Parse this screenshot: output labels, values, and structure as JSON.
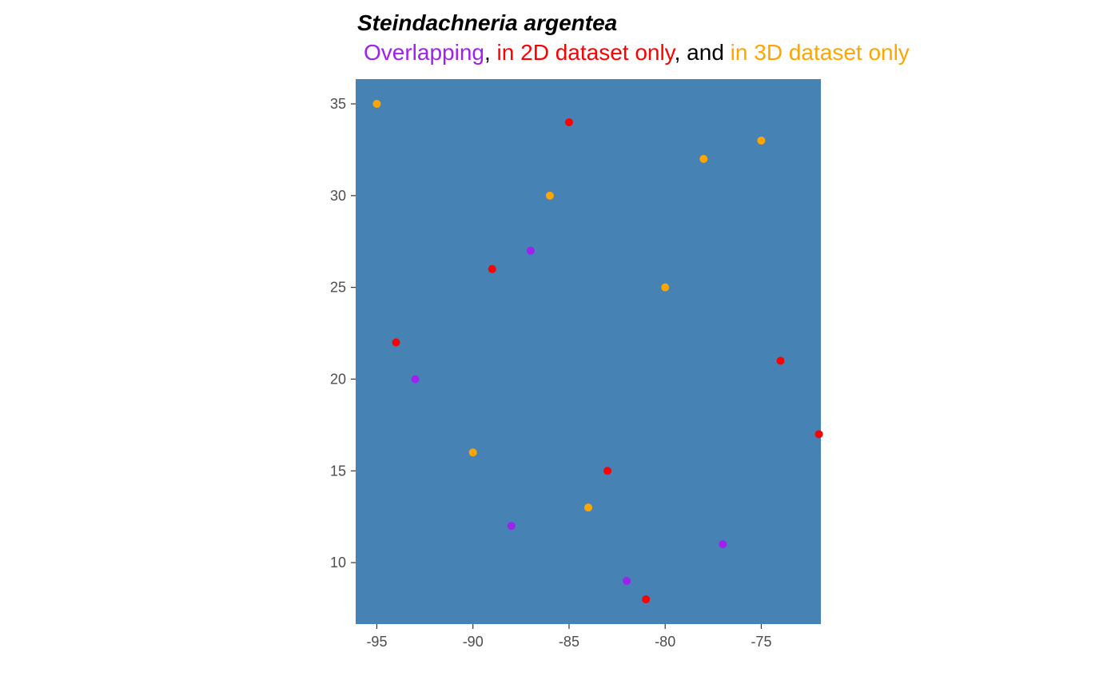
{
  "chart_data": {
    "type": "scatter",
    "title": "Steindachneria argentea",
    "subtitle": [
      {
        "text": "Overlapping",
        "color": "#a020f0"
      },
      {
        "text": ", ",
        "color": "#000000"
      },
      {
        "text": "in 2D dataset only",
        "color": "#ff0000"
      },
      {
        "text": ", and ",
        "color": "#000000"
      },
      {
        "text": "in 3D dataset only",
        "color": "#ffa500"
      }
    ],
    "xlabel": "",
    "ylabel": "",
    "xlim": [
      -96.1,
      -71.9
    ],
    "ylim": [
      6.65,
      36.35
    ],
    "xticks": [
      -95,
      -90,
      -85,
      -80,
      -75
    ],
    "yticks": [
      10,
      15,
      20,
      25,
      30,
      35
    ],
    "grid": false,
    "panel_background": "#4682b4",
    "series": [
      {
        "color": "#a020f0",
        "points": [
          [
            -87,
            27
          ],
          [
            -93,
            20
          ],
          [
            -88,
            12
          ],
          [
            -82,
            9
          ],
          [
            -77,
            11
          ]
        ]
      },
      {
        "color": "#ff0000",
        "points": [
          [
            -85,
            34
          ],
          [
            -89,
            26
          ],
          [
            -94,
            22
          ],
          [
            -74,
            21
          ],
          [
            -72,
            17
          ],
          [
            -83,
            15
          ],
          [
            -81,
            8
          ]
        ]
      },
      {
        "color": "#ffa500",
        "points": [
          [
            -95,
            35
          ],
          [
            -75,
            33
          ],
          [
            -78,
            32
          ],
          [
            -86,
            30
          ],
          [
            -80,
            25
          ],
          [
            -90,
            16
          ],
          [
            -84,
            13
          ]
        ]
      }
    ]
  }
}
